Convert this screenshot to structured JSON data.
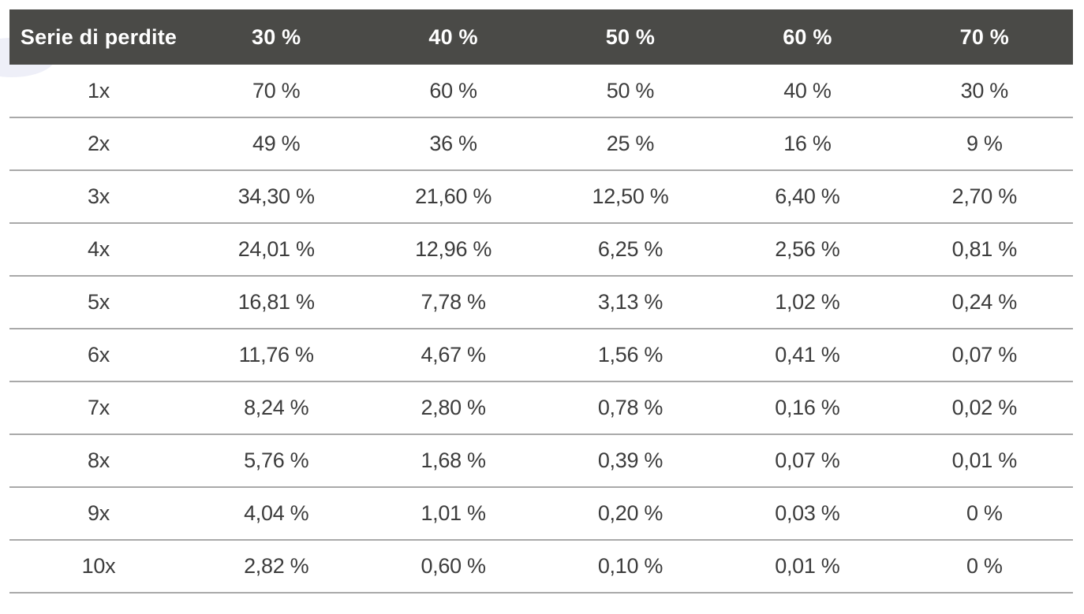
{
  "table": {
    "headers": [
      "Serie di perdite",
      "30 %",
      "40 %",
      "50 %",
      "60 %",
      "70 %"
    ],
    "rows": [
      [
        "1x",
        "70 %",
        "60 %",
        "50 %",
        "40 %",
        "30 %"
      ],
      [
        "2x",
        "49 %",
        "36 %",
        "25 %",
        "16 %",
        "9 %"
      ],
      [
        "3x",
        "34,30 %",
        "21,60 %",
        "12,50 %",
        "6,40 %",
        "2,70 %"
      ],
      [
        "4x",
        "24,01 %",
        "12,96 %",
        "6,25 %",
        "2,56 %",
        "0,81 %"
      ],
      [
        "5x",
        "16,81 %",
        "7,78 %",
        "3,13 %",
        "1,02 %",
        "0,24 %"
      ],
      [
        "6x",
        "11,76 %",
        "4,67 %",
        "1,56 %",
        "0,41 %",
        "0,07 %"
      ],
      [
        "7x",
        "8,24 %",
        "2,80 %",
        "0,78 %",
        "0,16 %",
        "0,02 %"
      ],
      [
        "8x",
        "5,76 %",
        "1,68 %",
        "0,39 %",
        "0,07 %",
        "0,01 %"
      ],
      [
        "9x",
        "4,04 %",
        "1,01 %",
        "0,20 %",
        "0,03 %",
        "0 %"
      ],
      [
        "10x",
        "2,82 %",
        "0,60 %",
        "0,10 %",
        "0,01 %",
        "0 %"
      ]
    ]
  }
}
